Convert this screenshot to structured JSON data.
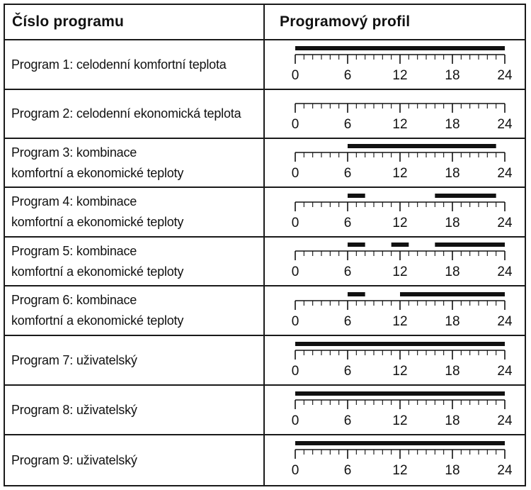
{
  "table": {
    "headers": {
      "program_number": "Číslo programu",
      "program_profile": "Programový profil"
    },
    "axis_labels": [
      "0",
      "6",
      "12",
      "18",
      "24"
    ],
    "rows": [
      {
        "label": "Program 1: celodenní komfortní teplota",
        "segments": [
          [
            0,
            24
          ]
        ]
      },
      {
        "label": "Program 2: celodenní ekonomická teplota",
        "segments": []
      },
      {
        "label": "Program 3: kombinace\nkomfortní a ekonomické teploty",
        "segments": [
          [
            6,
            23
          ]
        ]
      },
      {
        "label": "Program 4: kombinace\nkomfortní a ekonomické teploty",
        "segments": [
          [
            6,
            8
          ],
          [
            16,
            23
          ]
        ]
      },
      {
        "label": "Program 5: kombinace\nkomfortní a ekonomické teploty",
        "segments": [
          [
            6,
            8
          ],
          [
            11,
            13
          ],
          [
            16,
            24
          ]
        ]
      },
      {
        "label": "Program 6: kombinace\nkomfortní a ekonomické teploty",
        "segments": [
          [
            6,
            8
          ],
          [
            12,
            24
          ]
        ]
      },
      {
        "label": "Program 7: uživatelský",
        "segments": [
          [
            0,
            24
          ]
        ]
      },
      {
        "label": "Program 8: uživatelský",
        "segments": [
          [
            0,
            24
          ]
        ]
      },
      {
        "label": "Program 9: uživatelský",
        "segments": [
          [
            0,
            24
          ]
        ]
      }
    ]
  }
}
